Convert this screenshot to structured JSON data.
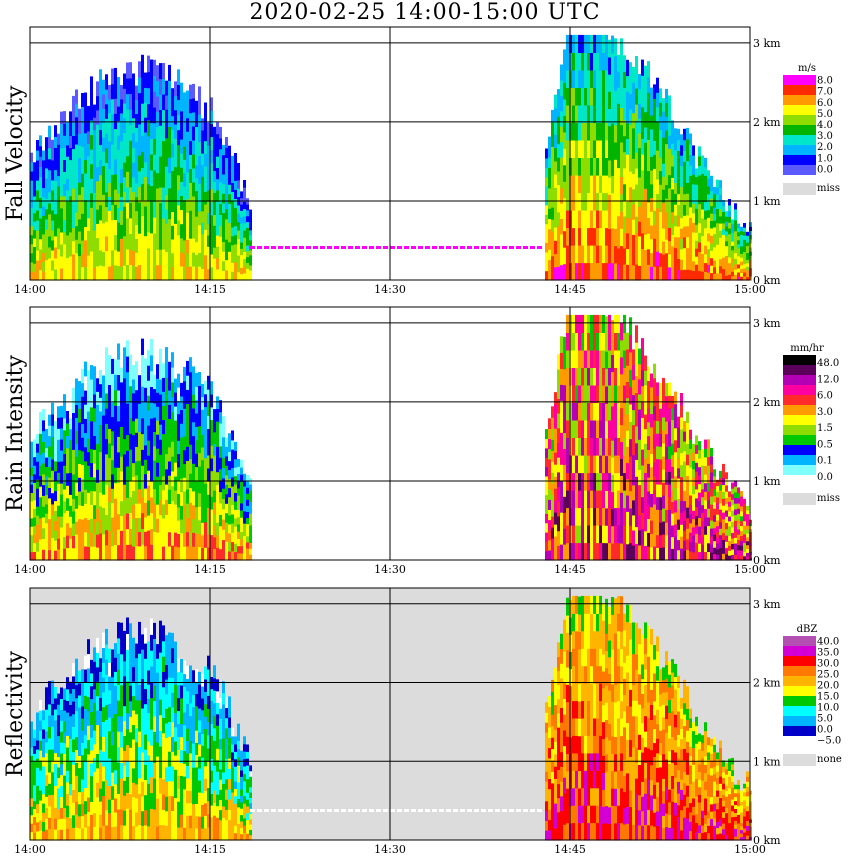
{
  "title": "2020-02-25  14:00-15:00 UTC",
  "chart_data": [
    {
      "type": "heatmap",
      "title": "Fall Velocity",
      "ylabel": "Fall Velocity",
      "x_ticks": [
        "14:00",
        "14:15",
        "14:30",
        "14:45",
        "15:00"
      ],
      "y_ticks": [
        "0 km",
        "1 km",
        "2 km",
        "3 km"
      ],
      "xlim": [
        "14:00",
        "15:00"
      ],
      "ylim_km": [
        0,
        3.2
      ],
      "colorbar": {
        "unit": "m/s",
        "labels": [
          "8.0",
          "7.0",
          "6.0",
          "5.0",
          "4.0",
          "3.0",
          "2.0",
          "1.0",
          "0.0"
        ],
        "colors": [
          "#ff00ff",
          "#ff2a00",
          "#ff9a00",
          "#ffff00",
          "#8fdc00",
          "#00b400",
          "#00e6c8",
          "#00b4ff",
          "#0000ff",
          "#5a5aff"
        ],
        "missing_label": "miss",
        "missing_color": "#dcdcdc"
      }
    },
    {
      "type": "heatmap",
      "title": "Rain Intensity",
      "ylabel": "Rain Intensity",
      "x_ticks": [
        "14:00",
        "14:15",
        "14:30",
        "14:45",
        "15:00"
      ],
      "y_ticks": [
        "0 km",
        "1 km",
        "2 km",
        "3 km"
      ],
      "xlim": [
        "14:00",
        "15:00"
      ],
      "ylim_km": [
        0,
        3.2
      ],
      "colorbar": {
        "unit": "mm/hr",
        "labels": [
          "48.0",
          "12.0",
          "6.0",
          "3.0",
          "1.5",
          "0.5",
          "0.1",
          "0.0"
        ],
        "colors": [
          "#000000",
          "#5a005a",
          "#b400b4",
          "#ff00a0",
          "#ff2a2a",
          "#ff9a00",
          "#ffff00",
          "#8fdc00",
          "#00c800",
          "#0000ff",
          "#00b4ff",
          "#80ffff",
          "#ffffff"
        ],
        "missing_label": "miss",
        "missing_color": "#dcdcdc"
      }
    },
    {
      "type": "heatmap",
      "title": "Reflectivity",
      "ylabel": "Reflectivity",
      "x_ticks": [
        "14:00",
        "14:15",
        "14:30",
        "14:45",
        "15:00"
      ],
      "y_ticks": [
        "0 km",
        "1 km",
        "2 km",
        "3 km"
      ],
      "xlim": [
        "14:00",
        "15:00"
      ],
      "ylim_km": [
        0,
        3.2
      ],
      "colorbar": {
        "unit": "dBZ",
        "labels": [
          "40.0",
          "35.0",
          "30.0",
          "25.0",
          "20.0",
          "15.0",
          "10.0",
          "5.0",
          "0.0",
          "−5.0"
        ],
        "colors": [
          "#b450b4",
          "#d200d2",
          "#ff0000",
          "#ff7800",
          "#ffb400",
          "#ffff00",
          "#00c800",
          "#00ffff",
          "#00b4ff",
          "#0000c8",
          "#ffffff"
        ],
        "missing_label": "none",
        "missing_color": "#dcdcdc"
      }
    }
  ]
}
